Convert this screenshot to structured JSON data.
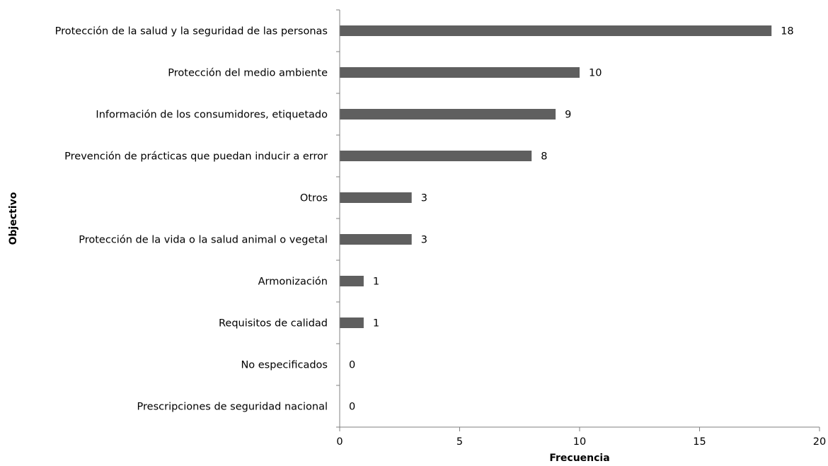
{
  "chart_data": {
    "type": "bar",
    "orientation": "horizontal",
    "categories": [
      "Protección de la salud y la seguridad de las personas",
      "Protección del medio ambiente",
      "Información de los consumidores, etiquetado",
      "Prevención de prácticas que puedan inducir a error",
      "Otros",
      "Protección de la vida o la salud animal o vegetal",
      "Armonización",
      "Requisitos de calidad",
      "No especificados",
      "Prescripciones de seguridad nacional"
    ],
    "values": [
      18,
      10,
      9,
      8,
      3,
      3,
      1,
      1,
      0,
      0
    ],
    "data_labels": [
      "18",
      "10",
      "9",
      "8",
      "3",
      "3",
      "1",
      "1",
      "0",
      "0"
    ],
    "xlabel": "Frecuencia",
    "ylabel": "Objectivo",
    "xlim": [
      0,
      20
    ],
    "xticks": [
      "0",
      "5",
      "10",
      "15",
      "20"
    ],
    "grid": false,
    "legend": "none",
    "colors": {
      "bar": "#5f5f5f",
      "axis": "#808080",
      "text": "#000000"
    }
  }
}
